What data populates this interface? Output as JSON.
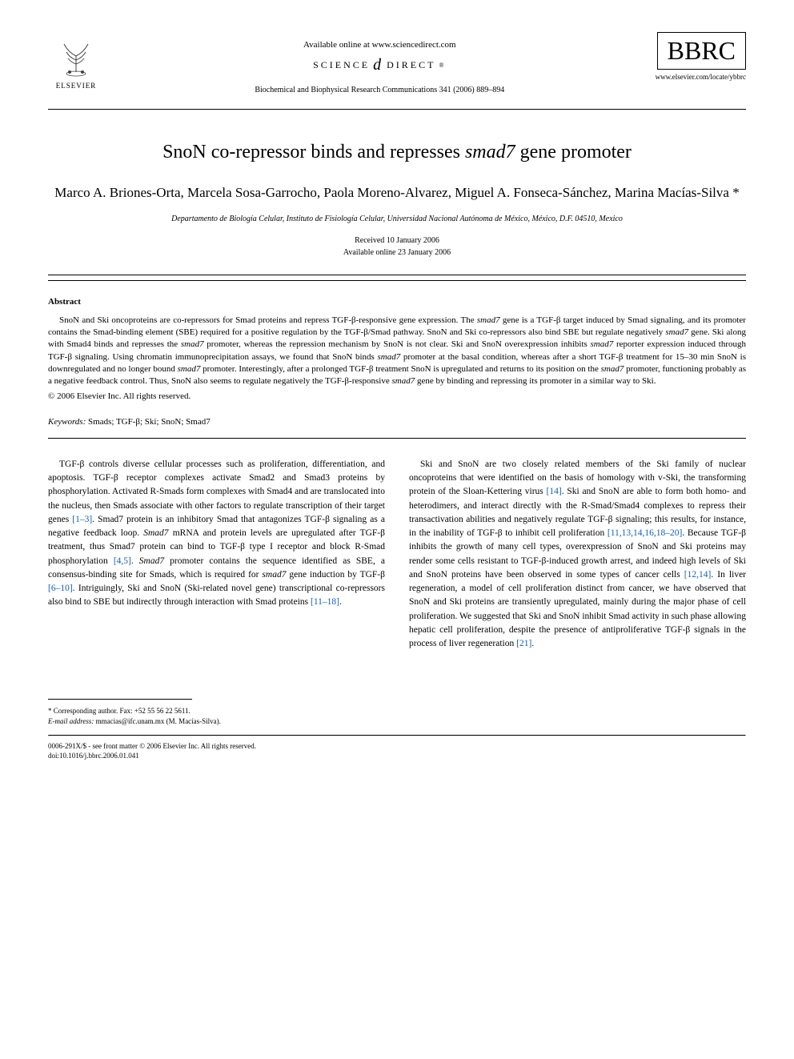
{
  "header": {
    "available_online": "Available online at www.sciencedirect.com",
    "science_direct": "SCIENCE",
    "science_direct_2": "DIRECT",
    "citation": "Biochemical and Biophysical Research Communications 341 (2006) 889–894",
    "elsevier_label": "ELSEVIER",
    "bbrc": "BBRC",
    "journal_url": "www.elsevier.com/locate/ybbrc"
  },
  "article": {
    "title_pre": "SnoN co-repressor binds and represses ",
    "title_italic": "smad7",
    "title_post": " gene promoter",
    "authors": "Marco A. Briones-Orta, Marcela Sosa-Garrocho, Paola Moreno-Alvarez, Miguel A. Fonseca-Sánchez, Marina Macías-Silva *",
    "affiliation": "Departamento de Biología Celular, Instituto de Fisiología Celular, Universidad Nacional Autónoma de México, México, D.F. 04510, Mexico",
    "received": "Received 10 January 2006",
    "available": "Available online 23 January 2006"
  },
  "abstract": {
    "heading": "Abstract",
    "text_parts": [
      {
        "t": "SnoN and Ski oncoproteins are co-repressors for Smad proteins and repress TGF-β-responsive gene expression. The ",
        "i": false
      },
      {
        "t": "smad7",
        "i": true
      },
      {
        "t": " gene is a TGF-β target induced by Smad signaling, and its promoter contains the Smad-binding element (SBE) required for a positive regulation by the TGF-β/Smad pathway. SnoN and Ski co-repressors also bind SBE but regulate negatively ",
        "i": false
      },
      {
        "t": "smad7",
        "i": true
      },
      {
        "t": " gene. Ski along with Smad4 binds and represses the ",
        "i": false
      },
      {
        "t": "smad7",
        "i": true
      },
      {
        "t": " promoter, whereas the repression mechanism by SnoN is not clear. Ski and SnoN overexpression inhibits ",
        "i": false
      },
      {
        "t": "smad7",
        "i": true
      },
      {
        "t": " reporter expression induced through TGF-β signaling. Using chromatin immunoprecipitation assays, we found that SnoN binds ",
        "i": false
      },
      {
        "t": "smad7",
        "i": true
      },
      {
        "t": " promoter at the basal condition, whereas after a short TGF-β treatment for 15–30 min SnoN is downregulated and no longer bound ",
        "i": false
      },
      {
        "t": "smad7",
        "i": true
      },
      {
        "t": " promoter. Interestingly, after a prolonged TGF-β treatment SnoN is upregulated and returns to its position on the ",
        "i": false
      },
      {
        "t": "smad7",
        "i": true
      },
      {
        "t": " promoter, functioning probably as a negative feedback control. Thus, SnoN also seems to regulate negatively the TGF-β-responsive ",
        "i": false
      },
      {
        "t": "smad7",
        "i": true
      },
      {
        "t": " gene by binding and repressing its promoter in a similar way to Ski.",
        "i": false
      }
    ],
    "copyright": "© 2006 Elsevier Inc. All rights reserved."
  },
  "keywords": {
    "label": "Keywords:",
    "text": " Smads; TGF-β; Ski; SnoN; Smad7"
  },
  "body": {
    "left": [
      {
        "t": "TGF-β controls diverse cellular processes such as proliferation, differentiation, and apoptosis. TGF-β receptor complexes activate Smad2 and Smad3 proteins by phosphorylation. Activated R-Smads form complexes with Smad4 and are translocated into the nucleus, then Smads associate with other factors to regulate transcription of their target genes ",
        "i": false
      },
      {
        "t": "[1–3]",
        "i": false,
        "ref": true
      },
      {
        "t": ". Smad7 protein is an inhibitory Smad that antagonizes TGF-β signaling as a negative feedback loop. ",
        "i": false
      },
      {
        "t": "Smad7",
        "i": true
      },
      {
        "t": " mRNA and protein levels are upregulated after TGF-β treatment, thus Smad7 protein can bind to TGF-β type I receptor and block R-Smad phosphorylation ",
        "i": false
      },
      {
        "t": "[4,5]",
        "i": false,
        "ref": true
      },
      {
        "t": ". ",
        "i": false
      },
      {
        "t": "Smad7",
        "i": true
      },
      {
        "t": " promoter contains the sequence identified as SBE, a consensus-binding site for Smads, which is required for ",
        "i": false
      },
      {
        "t": "smad7",
        "i": true
      },
      {
        "t": " gene induction by TGF-β ",
        "i": false
      },
      {
        "t": "[6–10]",
        "i": false,
        "ref": true
      },
      {
        "t": ". Intriguingly, Ski and SnoN (Ski-related novel gene) transcriptional co-repressors also bind to SBE but indirectly through interaction with Smad proteins ",
        "i": false
      },
      {
        "t": "[11–18]",
        "i": false,
        "ref": true
      },
      {
        "t": ".",
        "i": false
      }
    ],
    "right": [
      {
        "t": "Ski and SnoN are two closely related members of the Ski family of nuclear oncoproteins that were identified on the basis of homology with v-Ski, the transforming protein of the Sloan-Kettering virus ",
        "i": false
      },
      {
        "t": "[14]",
        "i": false,
        "ref": true
      },
      {
        "t": ". Ski and SnoN are able to form both homo- and heterodimers, and interact directly with the R-Smad/Smad4 complexes to repress their transactivation abilities and negatively regulate TGF-β signaling; this results, for instance, in the inability of TGF-β to inhibit cell proliferation ",
        "i": false
      },
      {
        "t": "[11,13,14,16,18–20]",
        "i": false,
        "ref": true
      },
      {
        "t": ". Because TGF-β inhibits the growth of many cell types, overexpression of SnoN and Ski proteins may render some cells resistant to TGF-β-induced growth arrest, and indeed high levels of Ski and SnoN proteins have been observed in some types of cancer cells ",
        "i": false
      },
      {
        "t": "[12,14]",
        "i": false,
        "ref": true
      },
      {
        "t": ". In liver regeneration, a model of cell proliferation distinct from cancer, we have observed that SnoN and Ski proteins are transiently upregulated, mainly during the major phase of cell proliferation. We suggested that Ski and SnoN inhibit Smad activity in such phase allowing hepatic cell proliferation, despite the presence of antiproliferative TGF-β signals in the process of liver regeneration ",
        "i": false
      },
      {
        "t": "[21]",
        "i": false,
        "ref": true
      },
      {
        "t": ".",
        "i": false
      }
    ]
  },
  "footer": {
    "corresponding": "* Corresponding author. Fax: +52 55 56 22 5611.",
    "email_label": "E-mail address:",
    "email": " mmacias@ifc.unam.mx (M. Macías-Silva).",
    "issn": "0006-291X/$ - see front matter © 2006 Elsevier Inc. All rights reserved.",
    "doi": "doi:10.1016/j.bbrc.2006.01.041"
  },
  "colors": {
    "text": "#000000",
    "background": "#ffffff",
    "ref_link": "#1060c0"
  },
  "typography": {
    "body_font": "Georgia, Times New Roman, serif",
    "title_size_pt": 24,
    "author_size_pt": 17,
    "body_size_pt": 11.5,
    "abstract_size_pt": 11,
    "footer_size_pt": 9
  }
}
